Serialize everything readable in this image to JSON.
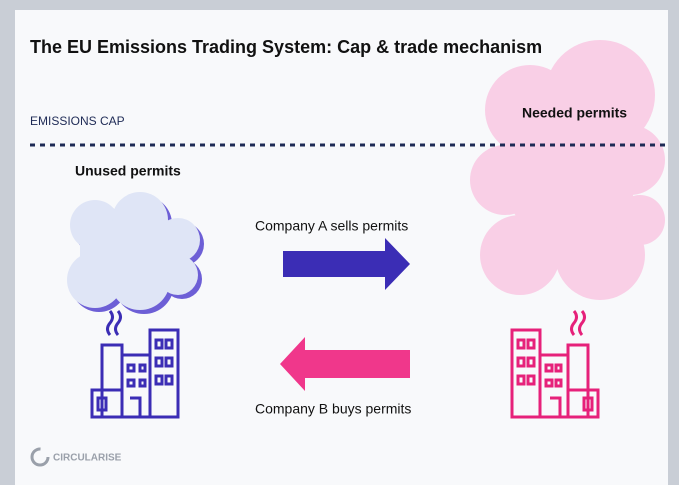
{
  "header": {
    "title": "The EU Emissions Trading System: Cap & trade mechanism"
  },
  "cap": {
    "label": "EMISSIONS CAP"
  },
  "left": {
    "label": "Unused permits"
  },
  "right": {
    "label": "Needed permits"
  },
  "flows": {
    "sell": "Company A sells permits",
    "buy": "Company B buys permits"
  },
  "footer": {
    "logo": "CIRCULARISE"
  }
}
